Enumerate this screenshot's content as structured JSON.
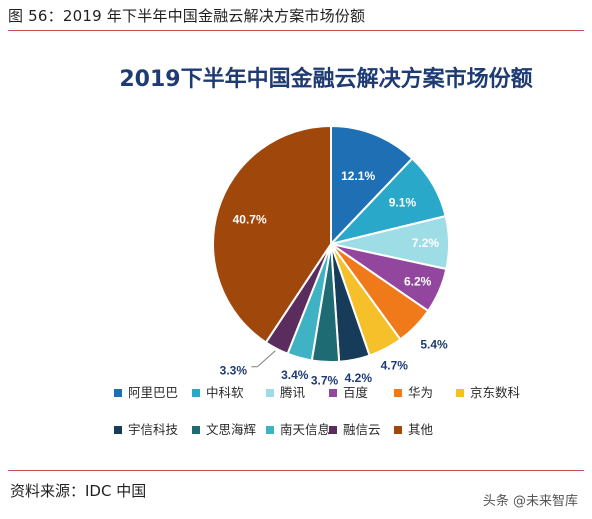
{
  "figure_caption": "图 56：2019 年下半年中国金融云解决方案市场份额",
  "source_note": "资料来源：IDC 中国",
  "watermark": "头条 @未来智库",
  "chart_data": {
    "type": "pie",
    "title": "2019下半年中国金融云解决方案市场份额",
    "legend_position": "bottom",
    "grid": false,
    "slices": [
      {
        "name": "阿里巴巴",
        "value": 12.1,
        "label": "12.1%",
        "color": "#1f6fb5",
        "label_color": "#ffffff"
      },
      {
        "name": "中科软",
        "value": 9.1,
        "label": "9.1%",
        "color": "#29a8c9",
        "label_color": "#ffffff"
      },
      {
        "name": "腾讯",
        "value": 7.2,
        "label": "7.2%",
        "color": "#9fdde6",
        "label_color": "#ffffff"
      },
      {
        "name": "百度",
        "value": 6.2,
        "label": "6.2%",
        "color": "#93469d",
        "label_color": "#ffffff"
      },
      {
        "name": "华为",
        "value": 5.4,
        "label": "5.4%",
        "color": "#f07a1a",
        "label_color": "#1f3b73"
      },
      {
        "name": "京东数科",
        "value": 4.7,
        "label": "4.7%",
        "color": "#f5c02a",
        "label_color": "#1f3b73"
      },
      {
        "name": "宇信科技",
        "value": 4.2,
        "label": "4.2%",
        "color": "#173c59",
        "label_color": "#1f3b73"
      },
      {
        "name": "文思海辉",
        "value": 3.7,
        "label": "3.7%",
        "color": "#1f6b73",
        "label_color": "#1f3b73"
      },
      {
        "name": "南天信息",
        "value": 3.4,
        "label": "3.4%",
        "color": "#3fb2c4",
        "label_color": "#1f3b73"
      },
      {
        "name": "融信云",
        "value": 3.3,
        "label": "3.3%",
        "color": "#5a2d5e",
        "label_color": "#1f3b73"
      },
      {
        "name": "其他",
        "value": 40.7,
        "label": "40.7%",
        "color": "#a0470c",
        "label_color": "#ffffff"
      }
    ]
  }
}
